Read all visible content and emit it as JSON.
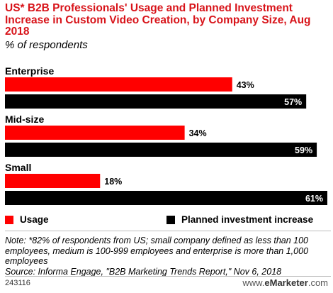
{
  "title": "US* B2B Professionals' Usage and Planned Investment Increase in Custom Video Creation, by Company Size, Aug 2018",
  "subtitle": "% of respondents",
  "legend": {
    "usage": "Usage",
    "planned": "Planned investment increase"
  },
  "note": "Note: *82% of respondents from US; small company defined as less than 100 employees, medium is 100-999 employees and enterprise is more than 1,000 employees",
  "source": "Source: Informa Engage, \"B2B Marketing Trends Report,\" Nov 6, 2018",
  "footer_id": "243116",
  "brand": {
    "prefix": "www.",
    "name": "eMarketer",
    "suffix": ".com"
  },
  "colors": {
    "usage": "#ff0000",
    "planned": "#000000",
    "title": "#d8141a"
  },
  "chart_data": {
    "type": "bar",
    "orientation": "horizontal",
    "categories": [
      "Enterprise",
      "Mid-size",
      "Small"
    ],
    "series": [
      {
        "name": "Usage",
        "values": [
          43,
          34,
          18
        ]
      },
      {
        "name": "Planned investment increase",
        "values": [
          57,
          59,
          61
        ]
      }
    ],
    "value_labels": {
      "Usage": [
        "43%",
        "34%",
        "18%"
      ],
      "Planned investment increase": [
        "57%",
        "59%",
        "61%"
      ]
    },
    "xlim": [
      0,
      61
    ],
    "grid": false,
    "legend_position": "bottom"
  }
}
